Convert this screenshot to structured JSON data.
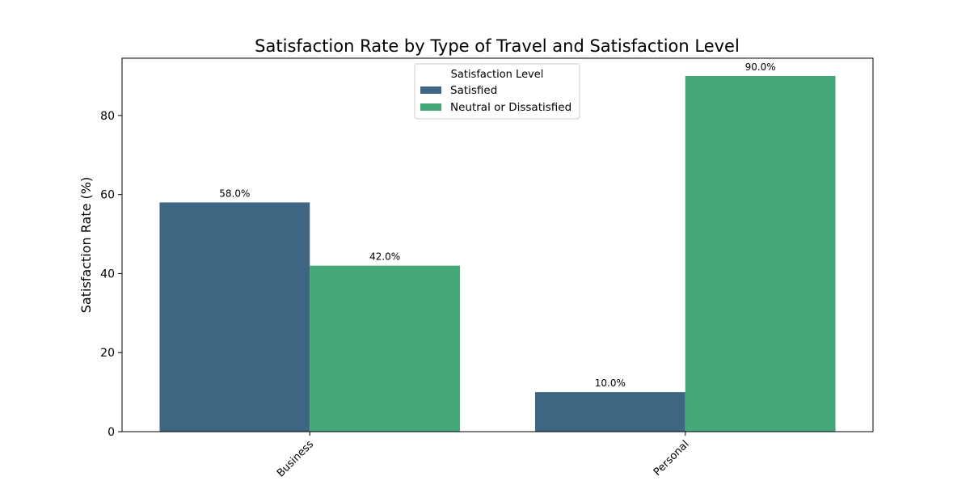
{
  "chart_data": {
    "type": "bar",
    "title": "Satisfaction Rate by Type of Travel and Satisfaction Level",
    "xlabel": "",
    "ylabel": "Satisfaction Rate (%)",
    "categories": [
      "Business",
      "Personal"
    ],
    "series": [
      {
        "name": "Satisfied",
        "values": [
          58.0,
          10.0
        ],
        "color": "#3e6683"
      },
      {
        "name": "Neutral or Dissatisfied",
        "values": [
          42.0,
          90.0
        ],
        "color": "#45a878"
      }
    ],
    "data_labels": [
      [
        "58.0%",
        "10.0%"
      ],
      [
        "42.0%",
        "90.0%"
      ]
    ],
    "ylim": [
      0,
      94.5
    ],
    "yticks": [
      0,
      20,
      40,
      60,
      80
    ],
    "grid": false,
    "legend": {
      "title": "Satisfaction Level",
      "placement": "top-center"
    }
  }
}
